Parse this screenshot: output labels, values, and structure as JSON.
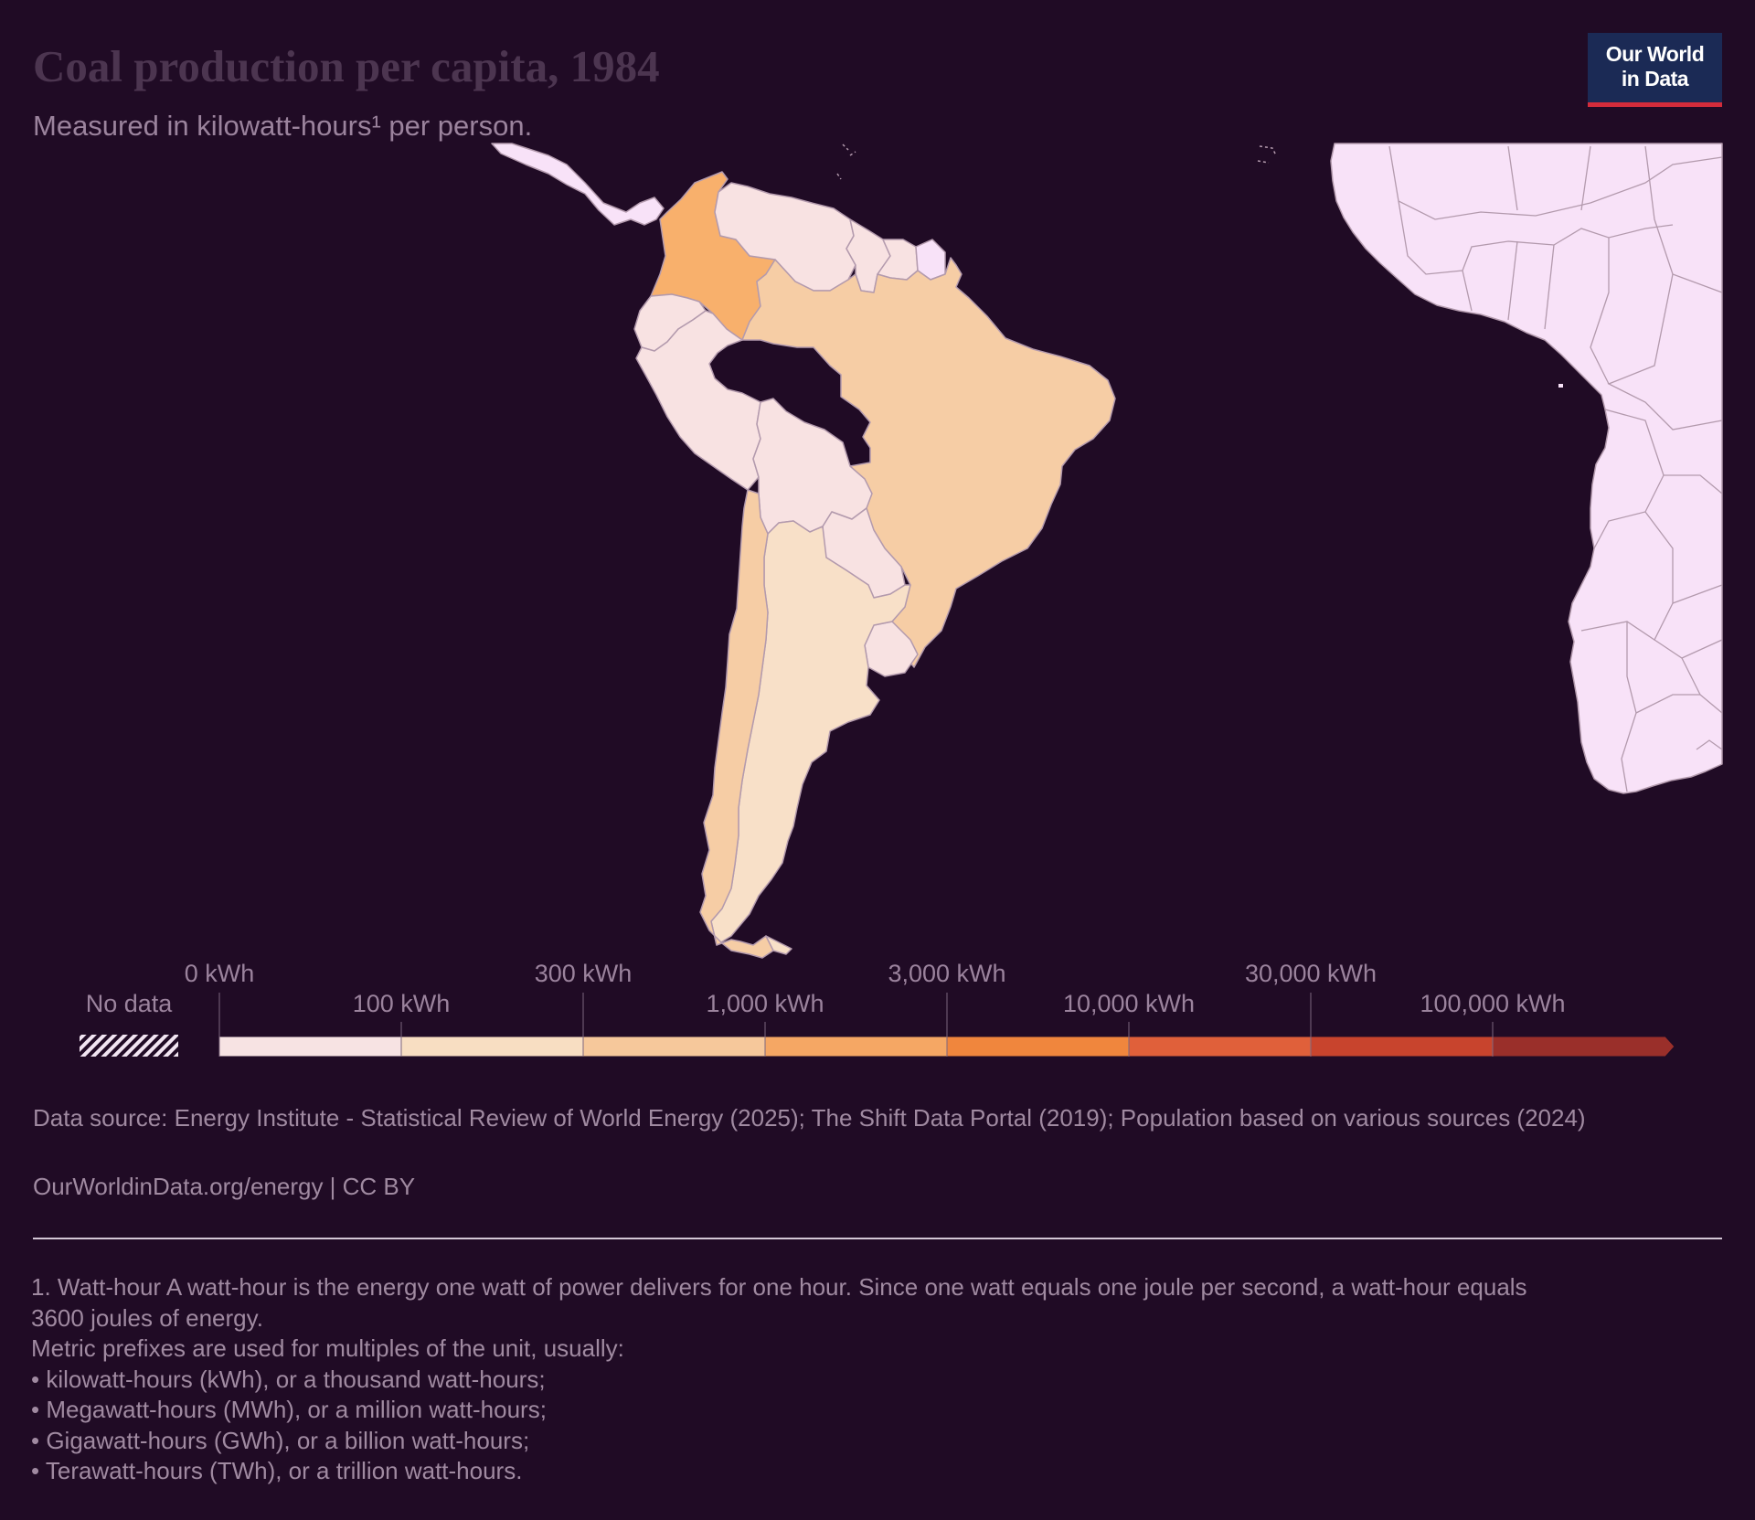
{
  "header": {
    "title": "Coal production per capita, 1984",
    "subtitle": "Measured in kilowatt-hours¹ per person."
  },
  "logo": {
    "line1": "Our World",
    "line2": "in Data"
  },
  "legend": {
    "no_data_label": "No data",
    "top_labels": [
      "0 kWh",
      "300 kWh",
      "3,000 kWh",
      "30,000 kWh"
    ],
    "bottom_labels": [
      "100 kWh",
      "1,000 kWh",
      "10,000 kWh",
      "100,000 kWh"
    ],
    "bin_colors": [
      "#f7e3e3",
      "#f8dec2",
      "#f6c89b",
      "#f5a764",
      "#f0863d",
      "#e0603a",
      "#c8442d",
      "#9a2f2a"
    ],
    "no_data_colors": [
      "#f2e5f2",
      "#200b25"
    ]
  },
  "map": {
    "ocean_color": "#200b25",
    "border_color": "#b39aad",
    "no_data_fill": "#f8e2f8",
    "countries": [
      {
        "name": "Colombia",
        "value_bin": "1,000 – 3,000 kWh",
        "fill": "#f8b06c"
      },
      {
        "name": "Brazil",
        "value_bin": "300 – 1,000 kWh",
        "fill": "#f6cda5"
      },
      {
        "name": "Chile",
        "value_bin": "300 – 1,000 kWh",
        "fill": "#f6cda5"
      },
      {
        "name": "Argentina",
        "value_bin": "100 – 300 kWh",
        "fill": "#f8e0c8"
      },
      {
        "name": "Venezuela",
        "value_bin": "0 – 100 kWh",
        "fill": "#f8e2e2"
      },
      {
        "name": "Peru",
        "value_bin": "0 – 100 kWh",
        "fill": "#f8e2e2"
      },
      {
        "name": "Bolivia",
        "value_bin": "0 – 100 kWh",
        "fill": "#f8e2e2"
      },
      {
        "name": "Ecuador",
        "value_bin": "0 – 100 kWh",
        "fill": "#f8e2e2"
      },
      {
        "name": "Paraguay",
        "value_bin": "0 – 100 kWh",
        "fill": "#f8e2e2"
      },
      {
        "name": "Uruguay",
        "value_bin": "0 – 100 kWh",
        "fill": "#f8e2e2"
      },
      {
        "name": "Guyana",
        "value_bin": "0 – 100 kWh",
        "fill": "#f8e2e2"
      },
      {
        "name": "Suriname",
        "value_bin": "0 – 100 kWh",
        "fill": "#f8e2e2"
      },
      {
        "name": "Central America",
        "value_bin": "No data",
        "fill": "#f8e2f8"
      },
      {
        "name": "Africa",
        "value_bin": "No data",
        "fill": "#f8e2f8"
      }
    ]
  },
  "footer": {
    "source": "Data source: Energy Institute - Statistical Review of World Energy (2025); The Shift Data Portal (2019); Population based on various sources (2024)",
    "url": "OurWorldinData.org/energy | CC BY"
  },
  "notes": [
    "1. Watt-hour A watt-hour is the energy one watt of power delivers for one hour. Since one watt equals one joule per second, a watt-hour equals",
    "3600 joules of energy.",
    "Metric prefixes are used for multiples of the unit, usually:",
    "• kilowatt-hours (kWh), or a thousand watt-hours;",
    "• Megawatt-hours (MWh), or a million watt-hours;",
    "• Gigawatt-hours (GWh), or a billion watt-hours;",
    "• Terawatt-hours (TWh), or a trillion watt-hours."
  ]
}
